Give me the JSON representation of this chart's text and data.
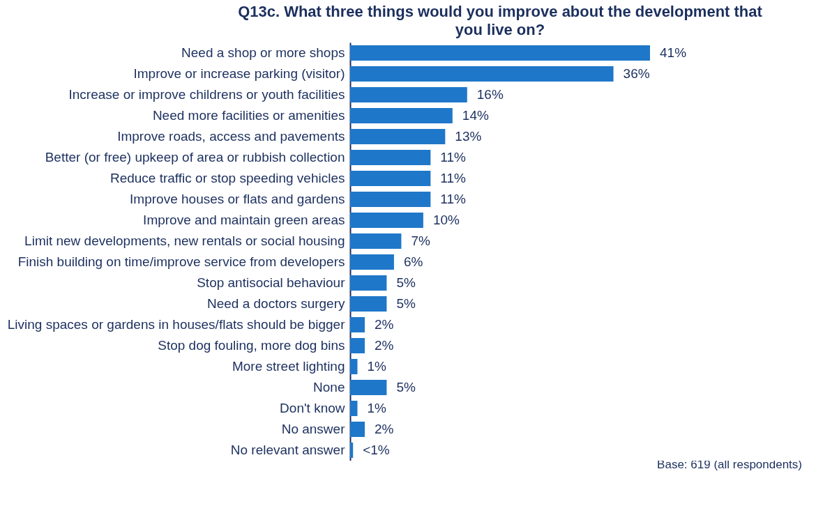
{
  "chart_data": {
    "type": "bar",
    "orientation": "horizontal",
    "title": "Q13c. What three things would you improve about the development that you live on?",
    "categories": [
      "Need a shop or more shops",
      "Improve or increase parking (visitor)",
      "Increase or improve childrens or youth facilities",
      "Need more facilities or amenities",
      "Improve roads, access and pavements",
      "Better (or free) upkeep of area or rubbish collection",
      "Reduce traffic or stop speeding vehicles",
      "Improve houses or flats and gardens",
      "Improve and maintain green areas",
      "Limit new developments, new rentals or social housing",
      "Finish building on time/improve service from developers",
      "Stop antisocial behaviour",
      "Need a doctors surgery",
      "Living spaces or gardens in houses/flats should be bigger",
      "Stop dog fouling, more dog bins",
      "More street lighting",
      "None",
      "Don't know",
      "No answer",
      "No relevant answer"
    ],
    "values": [
      41,
      36,
      16,
      14,
      13,
      11,
      11,
      11,
      10,
      7,
      6,
      5,
      5,
      2,
      2,
      1,
      5,
      1,
      2,
      0.4
    ],
    "value_labels": [
      "41%",
      "36%",
      "16%",
      "14%",
      "13%",
      "11%",
      "11%",
      "11%",
      "10%",
      "7%",
      "6%",
      "5%",
      "5%",
      "2%",
      "2%",
      "1%",
      "5%",
      "1%",
      "2%",
      "<1%"
    ],
    "color": "#1f77c9",
    "annotations": [
      "Base: 619 (all respondents)"
    ]
  }
}
